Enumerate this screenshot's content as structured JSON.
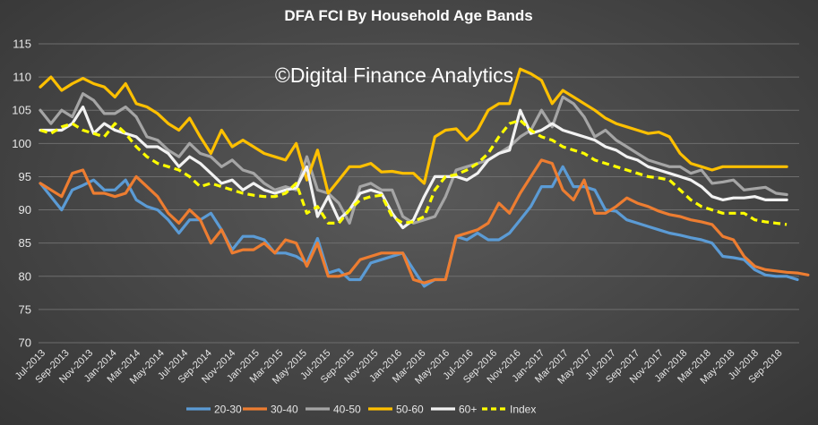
{
  "chart_data": {
    "type": "line",
    "title": "DFA FCI By Household Age Bands",
    "watermark": "©Digital Finance Analytics",
    "xlabel": "",
    "ylabel": "",
    "ylim": [
      70,
      115
    ],
    "yticks": [
      70,
      75,
      80,
      85,
      90,
      95,
      100,
      105,
      110,
      115
    ],
    "grid": true,
    "legend_position": "bottom",
    "tick_labels": [
      "Jul-2013",
      "Sep-2013",
      "Nov-2013",
      "Jan-2014",
      "Mar-2014",
      "May-2014",
      "Jul-2014",
      "Sep-2014",
      "Nov-2014",
      "Jan-2015",
      "Mar-2015",
      "May-2015",
      "Jul-2015",
      "Sep-2015",
      "Nov-2015",
      "Jan-2016",
      "Mar-2016",
      "May-2016",
      "Jul-2016",
      "Sep-2016",
      "Nov-2016",
      "Jan-2017",
      "Mar-2017",
      "May-2017",
      "Jul-2017",
      "Sep-2017",
      "Nov-2017",
      "Jan-2018",
      "Mar-2018",
      "May-2018",
      "Jul-2018",
      "Sep-2018"
    ],
    "series": [
      {
        "name": "20-30",
        "color": "#5b9bd5",
        "dashed": false,
        "values": [
          94,
          92,
          90,
          93,
          93.7,
          94.5,
          93,
          93,
          94.5,
          91.5,
          90.5,
          90,
          88.5,
          86.5,
          88.5,
          88.5,
          89.5,
          87,
          84,
          86,
          86,
          85.5,
          83.5,
          83.5,
          83,
          82,
          85.7,
          80.5,
          81,
          79.5,
          79.5,
          82,
          82.5,
          83,
          83.5,
          81,
          78.5,
          79.5,
          79.5,
          86,
          85.5,
          86.5,
          85.5,
          85.5,
          86.5,
          88.5,
          90.5,
          93.5,
          93.5,
          96.5,
          93.5,
          93.5,
          93,
          90,
          89.8,
          88.5,
          88,
          87.5,
          87,
          86.5,
          86.2,
          85.8,
          85.5,
          85,
          83,
          82.8,
          82.5,
          81,
          80.2,
          80,
          80,
          79.5
        ]
      },
      {
        "name": "30-40",
        "color": "#ed7d31",
        "dashed": false,
        "values": [
          94,
          93,
          92,
          95.5,
          96,
          92.5,
          92.5,
          92,
          92.5,
          95,
          93.5,
          92,
          89.5,
          88,
          90,
          88.5,
          85,
          87,
          83.5,
          84,
          84,
          85,
          83.5,
          85.5,
          85,
          81.5,
          85,
          80,
          80,
          80.5,
          82.5,
          83,
          83.5,
          83.5,
          83.5,
          79.5,
          79,
          79.5,
          79.5,
          86,
          86.5,
          87,
          88,
          91,
          89.5,
          92.5,
          95,
          97.5,
          97,
          93,
          91.5,
          94.5,
          89.5,
          89.5,
          90.5,
          91.8,
          91,
          90.5,
          89.8,
          89.3,
          89,
          88.5,
          88.2,
          87.8,
          86,
          85.5,
          83,
          81.5,
          81,
          80.8,
          80.6,
          80.5,
          80.2
        ]
      },
      {
        "name": "40-50",
        "color": "#a5a5a5",
        "dashed": false,
        "values": [
          105,
          103,
          105,
          104,
          107.5,
          106.5,
          104.5,
          104.5,
          105.5,
          104,
          101,
          100.5,
          99,
          98,
          100,
          98.5,
          98,
          96.5,
          97.5,
          96,
          95.5,
          94,
          93,
          93.5,
          93,
          98,
          93,
          92.5,
          91,
          88,
          93.5,
          94,
          93,
          93,
          89,
          88,
          88.5,
          89,
          92,
          96,
          96.5,
          97,
          97.5,
          98.5,
          99.5,
          101,
          102,
          105,
          102.5,
          107,
          106,
          104,
          101,
          102,
          100.5,
          99.5,
          98.5,
          97.5,
          97,
          96.5,
          96.5,
          95.5,
          96,
          94,
          94.2,
          94.5,
          93,
          93.2,
          93.4,
          92.5,
          92.3
        ]
      },
      {
        "name": "50-60",
        "color": "#ffc000",
        "dashed": false,
        "values": [
          108.5,
          110,
          108,
          109,
          109.8,
          109,
          108.5,
          107,
          109,
          106,
          105.5,
          104.5,
          103,
          102,
          103.8,
          101,
          98.5,
          102,
          99.5,
          100.5,
          99.5,
          98.5,
          98,
          97.5,
          100,
          94.5,
          99,
          92.5,
          94.5,
          96.5,
          96.5,
          97,
          95.7,
          95.8,
          95.5,
          95.5,
          94,
          101,
          102,
          102.2,
          100.5,
          102,
          105,
          106,
          106,
          111.2,
          110.5,
          109.5,
          106,
          108,
          107,
          106,
          105,
          103.8,
          103,
          102.5,
          102,
          101.5,
          101.7,
          101,
          98.5,
          97,
          96.5,
          96,
          96.5,
          96.5,
          96.5,
          96.5,
          96.5,
          96.5,
          96.5
        ]
      },
      {
        "name": "60+",
        "color": "#f2f2f2",
        "dashed": false,
        "values": [
          102,
          102,
          102,
          103,
          105.5,
          101.5,
          103,
          102,
          101.5,
          101,
          99.5,
          99.5,
          98.5,
          96.5,
          98,
          97,
          95.5,
          94,
          94.5,
          93,
          94,
          93,
          92.5,
          93,
          93.3,
          96.5,
          89,
          92,
          88.5,
          90,
          92.5,
          93,
          92.5,
          89.5,
          87.3,
          88.5,
          92,
          95,
          95,
          95,
          94.5,
          95.5,
          97.5,
          98.5,
          99,
          105,
          101.5,
          102,
          103,
          102,
          101.5,
          101,
          100.5,
          99.5,
          99,
          98,
          97.5,
          96.5,
          96,
          95.5,
          95,
          94.5,
          93.5,
          92,
          91.5,
          91.8,
          91.8,
          92,
          91.5,
          91.5,
          91.5
        ]
      },
      {
        "name": "Index",
        "color": "#ffff00",
        "dashed": true,
        "values": [
          102,
          101.5,
          102.5,
          103,
          102,
          101.5,
          101,
          103,
          101.5,
          99.5,
          98,
          97,
          96.5,
          96,
          95,
          93.5,
          94,
          93.5,
          93,
          92.5,
          92.2,
          92,
          92,
          92.5,
          94,
          89.5,
          90.5,
          88,
          88,
          90,
          91.5,
          92,
          92.2,
          89,
          88,
          88.2,
          89,
          93,
          95,
          95.3,
          96,
          97,
          98.5,
          101,
          103,
          103.5,
          102,
          101,
          100.5,
          99.5,
          99,
          98.5,
          97.5,
          97,
          96.5,
          96,
          95.5,
          95,
          94.8,
          94.5,
          93,
          91.5,
          90.5,
          90,
          89.5,
          89.5,
          89.5,
          88.5,
          88.2,
          88,
          87.8
        ]
      }
    ]
  }
}
